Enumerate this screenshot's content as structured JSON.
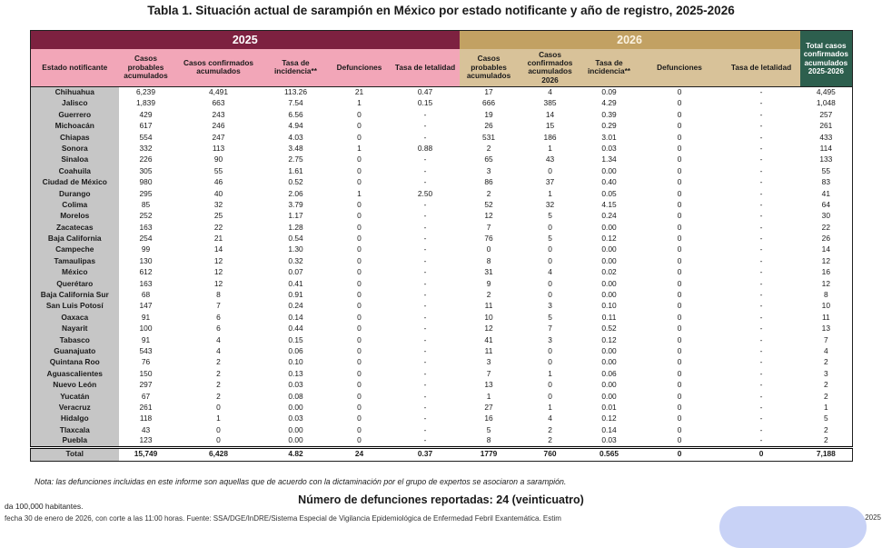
{
  "page": {
    "title": "Tabla 1. Situación actual de sarampión en México por estado notificante y año de registro, 2025-2026",
    "note": "Nota: las defunciones incluidas en este informe son aquellas que de acuerdo con la dictaminación por el grupo de expertos se asociaron a sarampión.",
    "deaths_line": "Número de defunciones reportadas: 24 (veinticuatro)",
    "footnote_left": "da 100,000 habitantes.",
    "footnote_bottom": "fecha 30 de enero de 2026, con corte a las 11:00 horas. Fuente: SSA/DGE/InDRE/Sistema Especial de Vigilancia Epidemiológica de Enfermedad Febril Exantemática. Estim",
    "corner_year": "2025"
  },
  "table": {
    "band_2025": "2025",
    "band_2026": "2026",
    "estado_header": "Estado notificante",
    "cols_2025": [
      "Casos probables acumulados",
      "Casos confirmados acumulados",
      "Tasa de incidencia**",
      "Defunciones",
      "Tasa de letalidad"
    ],
    "cols_2026": [
      "Casos probables acumulados",
      "Casos confirmados acumulados 2026",
      "Tasa de incidencia**",
      "Defunciones",
      "Tasa de letalidad"
    ],
    "total_header": "Total casos confirmados acumulados 2025-2026",
    "rows": [
      [
        "Chihuahua",
        "6,239",
        "4,491",
        "113.26",
        "21",
        "0.47",
        "17",
        "4",
        "0.09",
        "0",
        "-",
        "4,495"
      ],
      [
        "Jalisco",
        "1,839",
        "663",
        "7.54",
        "1",
        "0.15",
        "666",
        "385",
        "4.29",
        "0",
        "-",
        "1,048"
      ],
      [
        "Guerrero",
        "429",
        "243",
        "6.56",
        "0",
        "-",
        "19",
        "14",
        "0.39",
        "0",
        "-",
        "257"
      ],
      [
        "Michoacán",
        "617",
        "246",
        "4.94",
        "0",
        "-",
        "26",
        "15",
        "0.29",
        "0",
        "-",
        "261"
      ],
      [
        "Chiapas",
        "554",
        "247",
        "4.03",
        "0",
        "-",
        "531",
        "186",
        "3.01",
        "0",
        "-",
        "433"
      ],
      [
        "Sonora",
        "332",
        "113",
        "3.48",
        "1",
        "0.88",
        "2",
        "1",
        "0.03",
        "0",
        "-",
        "114"
      ],
      [
        "Sinaloa",
        "226",
        "90",
        "2.75",
        "0",
        "-",
        "65",
        "43",
        "1.34",
        "0",
        "-",
        "133"
      ],
      [
        "Coahuila",
        "305",
        "55",
        "1.61",
        "0",
        "-",
        "3",
        "0",
        "0.00",
        "0",
        "-",
        "55"
      ],
      [
        "Ciudad de México",
        "980",
        "46",
        "0.52",
        "0",
        "-",
        "86",
        "37",
        "0.40",
        "0",
        "-",
        "83"
      ],
      [
        "Durango",
        "295",
        "40",
        "2.06",
        "1",
        "2.50",
        "2",
        "1",
        "0.05",
        "0",
        "-",
        "41"
      ],
      [
        "Colima",
        "85",
        "32",
        "3.79",
        "0",
        "-",
        "52",
        "32",
        "4.15",
        "0",
        "-",
        "64"
      ],
      [
        "Morelos",
        "252",
        "25",
        "1.17",
        "0",
        "-",
        "12",
        "5",
        "0.24",
        "0",
        "-",
        "30"
      ],
      [
        "Zacatecas",
        "163",
        "22",
        "1.28",
        "0",
        "-",
        "7",
        "0",
        "0.00",
        "0",
        "-",
        "22"
      ],
      [
        "Baja California",
        "254",
        "21",
        "0.54",
        "0",
        "-",
        "76",
        "5",
        "0.12",
        "0",
        "-",
        "26"
      ],
      [
        "Campeche",
        "99",
        "14",
        "1.30",
        "0",
        "-",
        "0",
        "0",
        "0.00",
        "0",
        "-",
        "14"
      ],
      [
        "Tamaulipas",
        "130",
        "12",
        "0.32",
        "0",
        "-",
        "8",
        "0",
        "0.00",
        "0",
        "-",
        "12"
      ],
      [
        "México",
        "612",
        "12",
        "0.07",
        "0",
        "-",
        "31",
        "4",
        "0.02",
        "0",
        "-",
        "16"
      ],
      [
        "Querétaro",
        "163",
        "12",
        "0.41",
        "0",
        "-",
        "9",
        "0",
        "0.00",
        "0",
        "-",
        "12"
      ],
      [
        "Baja California Sur",
        "68",
        "8",
        "0.91",
        "0",
        "-",
        "2",
        "0",
        "0.00",
        "0",
        "-",
        "8"
      ],
      [
        "San Luis Potosí",
        "147",
        "7",
        "0.24",
        "0",
        "-",
        "11",
        "3",
        "0.10",
        "0",
        "-",
        "10"
      ],
      [
        "Oaxaca",
        "91",
        "6",
        "0.14",
        "0",
        "-",
        "10",
        "5",
        "0.11",
        "0",
        "-",
        "11"
      ],
      [
        "Nayarit",
        "100",
        "6",
        "0.44",
        "0",
        "-",
        "12",
        "7",
        "0.52",
        "0",
        "-",
        "13"
      ],
      [
        "Tabasco",
        "91",
        "4",
        "0.15",
        "0",
        "-",
        "41",
        "3",
        "0.12",
        "0",
        "-",
        "7"
      ],
      [
        "Guanajuato",
        "543",
        "4",
        "0.06",
        "0",
        "-",
        "11",
        "0",
        "0.00",
        "0",
        "-",
        "4"
      ],
      [
        "Quintana Roo",
        "76",
        "2",
        "0.10",
        "0",
        "-",
        "3",
        "0",
        "0.00",
        "0",
        "-",
        "2"
      ],
      [
        "Aguascalientes",
        "150",
        "2",
        "0.13",
        "0",
        "-",
        "7",
        "1",
        "0.06",
        "0",
        "-",
        "3"
      ],
      [
        "Nuevo León",
        "297",
        "2",
        "0.03",
        "0",
        "-",
        "13",
        "0",
        "0.00",
        "0",
        "-",
        "2"
      ],
      [
        "Yucatán",
        "67",
        "2",
        "0.08",
        "0",
        "-",
        "1",
        "0",
        "0.00",
        "0",
        "-",
        "2"
      ],
      [
        "Veracruz",
        "261",
        "0",
        "0.00",
        "0",
        "-",
        "27",
        "1",
        "0.01",
        "0",
        "-",
        "1"
      ],
      [
        "Hidalgo",
        "118",
        "1",
        "0.03",
        "0",
        "-",
        "16",
        "4",
        "0.12",
        "0",
        "-",
        "5"
      ],
      [
        "Tlaxcala",
        "43",
        "0",
        "0.00",
        "0",
        "-",
        "5",
        "2",
        "0.14",
        "0",
        "-",
        "2"
      ],
      [
        "Puebla",
        "123",
        "0",
        "0.00",
        "0",
        "-",
        "8",
        "2",
        "0.03",
        "0",
        "-",
        "2"
      ]
    ],
    "total_row": [
      "Total",
      "15,749",
      "6,428",
      "4.82",
      "24",
      "0.37",
      "1779",
      "760",
      "0.565",
      "0",
      "0",
      "7,188"
    ]
  },
  "colors": {
    "band_2025": "#7D2140",
    "subheader_2025": "#F2A6B8",
    "band_2026": "#C2A163",
    "subheader_2026": "#D8C299",
    "total_header": "#2D5F4E",
    "state_column": "#C6C6C6",
    "blob": "#C8D2F6"
  }
}
